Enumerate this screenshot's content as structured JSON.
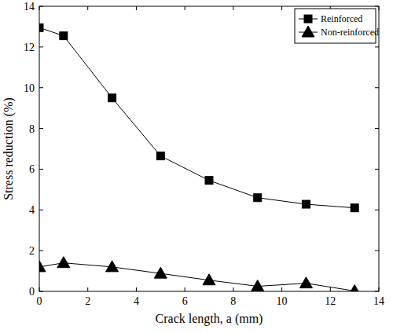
{
  "chart_data": {
    "type": "line",
    "x_label": "Crack length, a (mm)",
    "y_label": "Stress reduction (%)",
    "x": [
      0,
      1,
      3,
      5,
      7,
      9,
      11,
      13
    ],
    "series": [
      {
        "name": "Reinforced",
        "color": "#000000",
        "marker": "square",
        "line_style": "solid",
        "values": [
          12.95,
          12.55,
          9.5,
          6.65,
          5.45,
          4.6,
          4.28,
          4.1
        ]
      },
      {
        "name": "Non-reinforced",
        "color": "#000000",
        "marker": "triangle",
        "line_style": "solid",
        "values": [
          1.2,
          1.4,
          1.2,
          0.88,
          0.55,
          0.25,
          0.4,
          0.02
        ]
      }
    ],
    "xlim": [
      0,
      14
    ],
    "xticks": [
      0,
      2,
      4,
      6,
      8,
      10,
      12,
      14
    ],
    "ylim": [
      0,
      14
    ],
    "yticks": [
      0,
      2,
      4,
      6,
      8,
      10,
      12,
      14
    ],
    "grid": false,
    "legend": "upper right"
  }
}
